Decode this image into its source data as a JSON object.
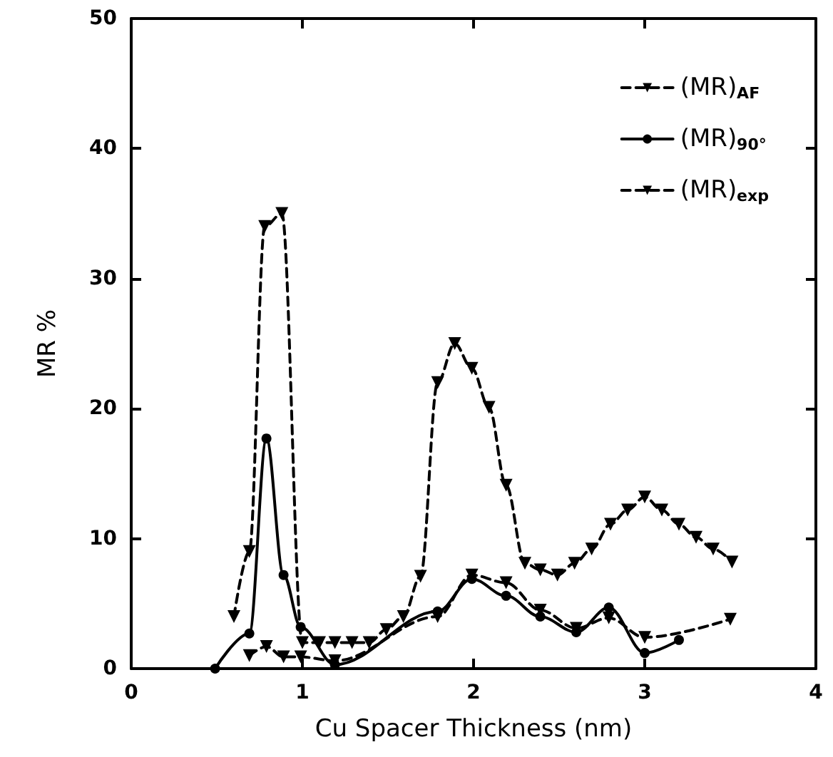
{
  "chart_data": {
    "type": "line",
    "xlabel": "Cu Spacer Thickness (nm)",
    "ylabel": "MR %",
    "xlim": [
      0,
      4
    ],
    "xticks": [
      0,
      1,
      2,
      3,
      4
    ],
    "ylim": [
      0,
      50
    ],
    "yticks": [
      0,
      10,
      20,
      30,
      40,
      50
    ],
    "grid": false,
    "legend": "top right",
    "series": [
      {
        "name": "(MR)$_{AF}$",
        "color": "#000000",
        "marker": "triangle",
        "line_style": "dashed",
        "x": [
          0.6,
          0.69,
          0.78,
          0.88,
          1.0,
          1.1,
          1.19,
          1.29,
          1.39,
          1.49,
          1.59,
          1.69,
          1.79,
          1.89,
          1.99,
          2.09,
          2.19,
          2.3,
          2.39,
          2.49,
          2.59,
          2.69,
          2.8,
          2.9,
          3.0,
          3.1,
          3.2,
          3.3,
          3.4,
          3.51
        ],
        "values": [
          4.0,
          9.0,
          34,
          35,
          2.0,
          2.0,
          2.0,
          2.0,
          2.0,
          3.0,
          4.0,
          7.1,
          22,
          25,
          23.1,
          20.1,
          14.1,
          8.1,
          7.6,
          7.2,
          8.1,
          9.2,
          11.1,
          12.2,
          13.2,
          12.2,
          11.1,
          10.1,
          9.2,
          8.2
        ]
      },
      {
        "name": "(MR)$_{90°}$",
        "color": "#000000",
        "marker": "circle",
        "line_style": "solid",
        "x": [
          0.49,
          0.69,
          0.79,
          0.89,
          0.99,
          1.19,
          1.79,
          1.99,
          2.19,
          2.39,
          2.6,
          2.79,
          3.0,
          3.2
        ],
        "values": [
          0,
          2.7,
          17.7,
          7.2,
          3.2,
          0.3,
          4.4,
          6.9,
          5.6,
          4.0,
          2.8,
          4.7,
          1.2,
          2.2
        ]
      },
      {
        "name": "(MR)$_{exp}$",
        "color": "#000000",
        "marker": "triangle",
        "line_style": "dashed",
        "x": [
          0.69,
          0.79,
          0.89,
          0.99,
          1.19,
          1.79,
          1.99,
          2.19,
          2.39,
          2.6,
          2.79,
          3.0,
          3.5
        ],
        "values": [
          1.0,
          1.7,
          0.9,
          0.9,
          0.6,
          4.0,
          7.2,
          6.6,
          4.5,
          3.1,
          3.9,
          2.4,
          3.8
        ]
      }
    ]
  }
}
